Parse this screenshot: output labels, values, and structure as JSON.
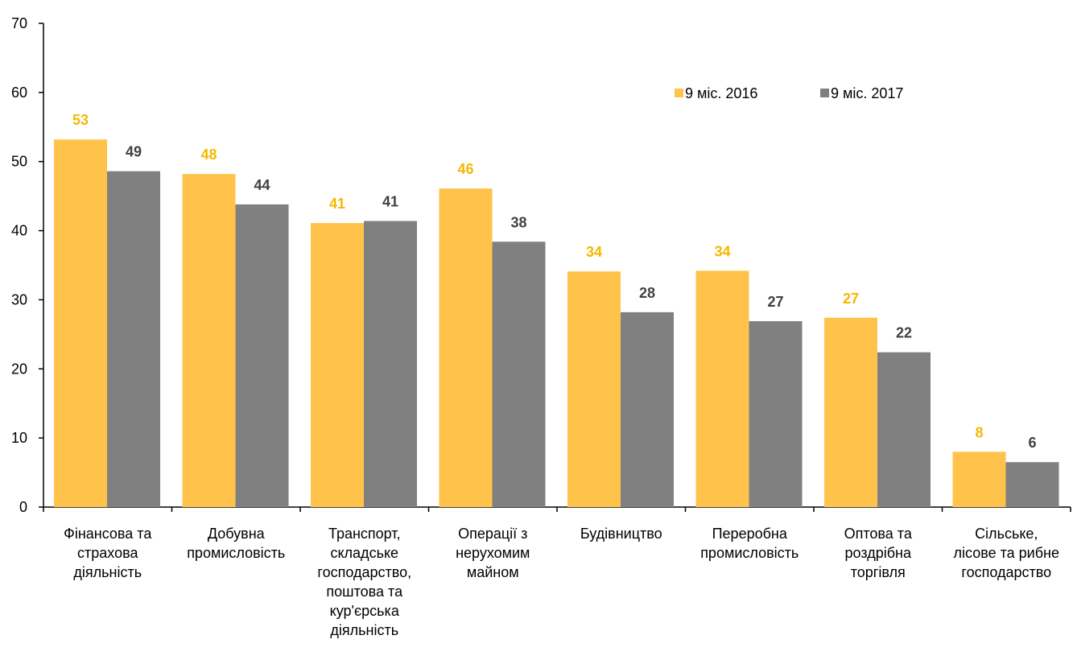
{
  "chart_data": {
    "type": "bar",
    "categories": [
      [
        "Фінансова та",
        "страхова",
        "діяльність"
      ],
      [
        "Добувна",
        "промисловість"
      ],
      [
        "Транспорт,",
        "складське",
        "господарство,",
        "поштова та",
        "кур'єрська",
        "діяльність"
      ],
      [
        "Операції з",
        "нерухомим",
        "майном"
      ],
      [
        "Будівництво"
      ],
      [
        "Переробна",
        "промисловість"
      ],
      [
        "Оптова та",
        "роздрібна",
        "торгівля"
      ],
      [
        "Сільське,",
        "лісове та рибне",
        "господарство"
      ]
    ],
    "series": [
      {
        "name": "9 міс. 2016",
        "color": "#FFC34B",
        "label_color": "#F5B800",
        "values": [
          53.2,
          48.2,
          41.1,
          46.1,
          34.1,
          34.2,
          27.4,
          8.0
        ],
        "labels": [
          "53",
          "48",
          "41",
          "46",
          "34",
          "34",
          "27",
          "8"
        ]
      },
      {
        "name": "9 міс. 2017",
        "color": "#808080",
        "label_color": "#404040",
        "values": [
          48.6,
          43.8,
          41.4,
          38.4,
          28.2,
          26.9,
          22.4,
          6.5
        ],
        "labels": [
          "49",
          "44",
          "41",
          "38",
          "28",
          "27",
          "22",
          "6"
        ]
      }
    ],
    "ylim": [
      0,
      70
    ],
    "yticks": [
      "0",
      "10",
      "20",
      "30",
      "40",
      "50",
      "60",
      "70"
    ],
    "grid": false,
    "legend": "top-right"
  }
}
